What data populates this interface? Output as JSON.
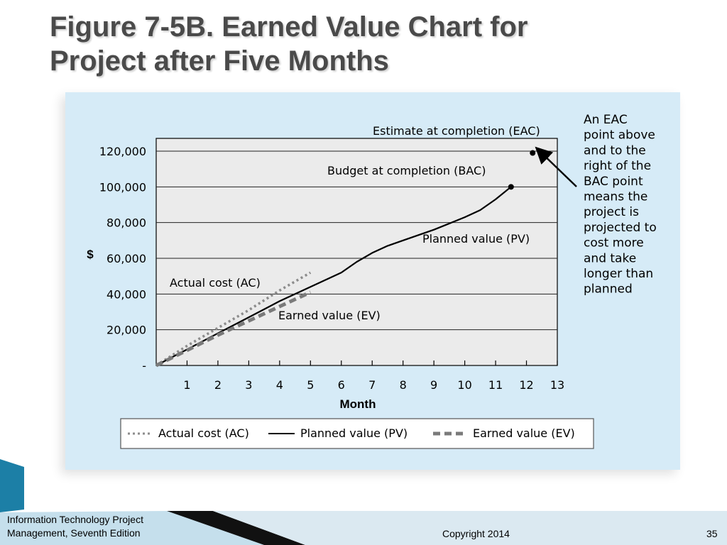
{
  "slide": {
    "title_line1": "Figure 7-5B. Earned Value Chart for",
    "title_line2": "Project after Five Months",
    "footer_line1": "Information Technology Project",
    "footer_line2": "Management, Seventh Edition",
    "copyright": "Copyright 2014",
    "page_number": "35"
  },
  "colors": {
    "panel": "#d6ebf7",
    "plot_bg": "#ebebeb",
    "pv_line": "#000000",
    "ac_line": "#8c8c8c",
    "ev_line": "#7a7a7a",
    "accent_teal": "#1c7fa6"
  },
  "chart_data": {
    "type": "line",
    "xlabel": "Month",
    "ylabel": "$",
    "xlim": [
      0,
      13
    ],
    "ylim": [
      0,
      120000
    ],
    "x_ticks": [
      "1",
      "2",
      "3",
      "4",
      "5",
      "6",
      "7",
      "8",
      "9",
      "10",
      "11",
      "12",
      "13"
    ],
    "y_ticks": [
      "-",
      "20,000",
      "40,000",
      "60,000",
      "80,000",
      "100,000",
      "120,000"
    ],
    "y_tick_values": [
      0,
      20000,
      40000,
      60000,
      80000,
      100000,
      120000
    ],
    "grid": "horizontal",
    "legend_position": "bottom",
    "series": [
      {
        "name": "Actual cost (AC)",
        "style": "dotted",
        "x": [
          0,
          1,
          2,
          3,
          4,
          5
        ],
        "y": [
          0,
          11000,
          21000,
          31000,
          42000,
          52000
        ]
      },
      {
        "name": "Planned value (PV)",
        "style": "solid",
        "x": [
          0,
          1,
          2,
          3,
          4,
          5,
          6,
          6.5,
          7,
          7.5,
          8,
          9,
          10,
          10.5,
          11,
          11.5
        ],
        "y": [
          0,
          9000,
          18000,
          27000,
          36000,
          44000,
          52000,
          58000,
          63000,
          67000,
          70000,
          76000,
          83000,
          87000,
          93000,
          100000
        ]
      },
      {
        "name": "Earned value (EV)",
        "style": "dashed",
        "x": [
          0,
          1,
          2,
          3,
          4,
          5
        ],
        "y": [
          0,
          8500,
          17000,
          25000,
          33000,
          41000
        ]
      }
    ],
    "labels": {
      "ac": "Actual cost (AC)",
      "pv": "Planned value (PV)",
      "ev": "Earned value (EV)",
      "bac": "Budget at completion (BAC)",
      "eac": "Estimate at completion (EAC)"
    },
    "points": {
      "bac": {
        "x": 11.5,
        "y": 100000
      },
      "eac": {
        "x": 12.2,
        "y": 119000
      }
    },
    "annotation_lines": [
      "An EAC",
      "point above",
      "and to the",
      "right of the",
      "BAC point",
      "means the",
      "project is",
      "projected to",
      "cost more",
      "and take",
      "longer than",
      "planned"
    ]
  }
}
